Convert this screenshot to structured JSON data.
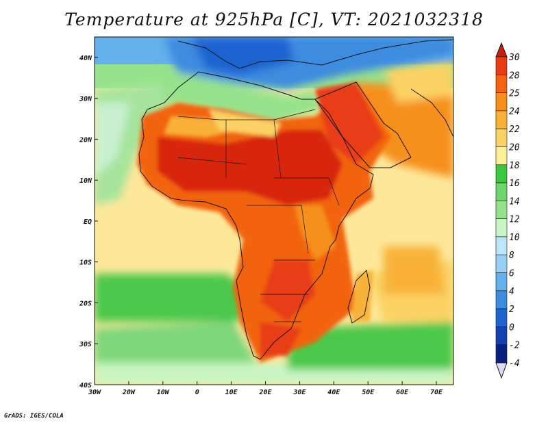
{
  "title": "Temperature at 925hPa [C], VT: 2021032318",
  "credit": "GrADS: IGES/COLA",
  "map": {
    "lon_range": [
      -30,
      75
    ],
    "lat_range": [
      -40,
      45
    ],
    "lon_ticks": [
      {
        "value": -30,
        "label": "30W"
      },
      {
        "value": -20,
        "label": "20W"
      },
      {
        "value": -10,
        "label": "10W"
      },
      {
        "value": 0,
        "label": "0"
      },
      {
        "value": 10,
        "label": "10E"
      },
      {
        "value": 20,
        "label": "20E"
      },
      {
        "value": 30,
        "label": "30E"
      },
      {
        "value": 40,
        "label": "40E"
      },
      {
        "value": 50,
        "label": "50E"
      },
      {
        "value": 60,
        "label": "60E"
      },
      {
        "value": 70,
        "label": "70E"
      }
    ],
    "lat_ticks": [
      {
        "value": 40,
        "label": "40N"
      },
      {
        "value": 30,
        "label": "30N"
      },
      {
        "value": 20,
        "label": "20N"
      },
      {
        "value": 10,
        "label": "10N"
      },
      {
        "value": 0,
        "label": "EQ"
      },
      {
        "value": -10,
        "label": "10S"
      },
      {
        "value": -20,
        "label": "20S"
      },
      {
        "value": -30,
        "label": "30S"
      },
      {
        "value": -40,
        "label": "40S"
      }
    ]
  },
  "colorbar": {
    "labels": [
      "30",
      "28",
      "25",
      "24",
      "22",
      "20",
      "18",
      "16",
      "14",
      "12",
      "10",
      "8",
      "6",
      "4",
      "2",
      "0",
      "-2",
      "-4"
    ],
    "colors": [
      "#e83c14",
      "#f26410",
      "#f6901a",
      "#f8b238",
      "#fbd264",
      "#fdee98",
      "#3cc83c",
      "#6ed46c",
      "#96e28c",
      "#c8f5c3",
      "#bce6fa",
      "#96d0f5",
      "#64b0eb",
      "#3c8ce0",
      "#1e64d0",
      "#1440b0",
      "#0a2080"
    ],
    "top_color": "#c81e0a",
    "bottom_color": "#dcdcf5"
  }
}
